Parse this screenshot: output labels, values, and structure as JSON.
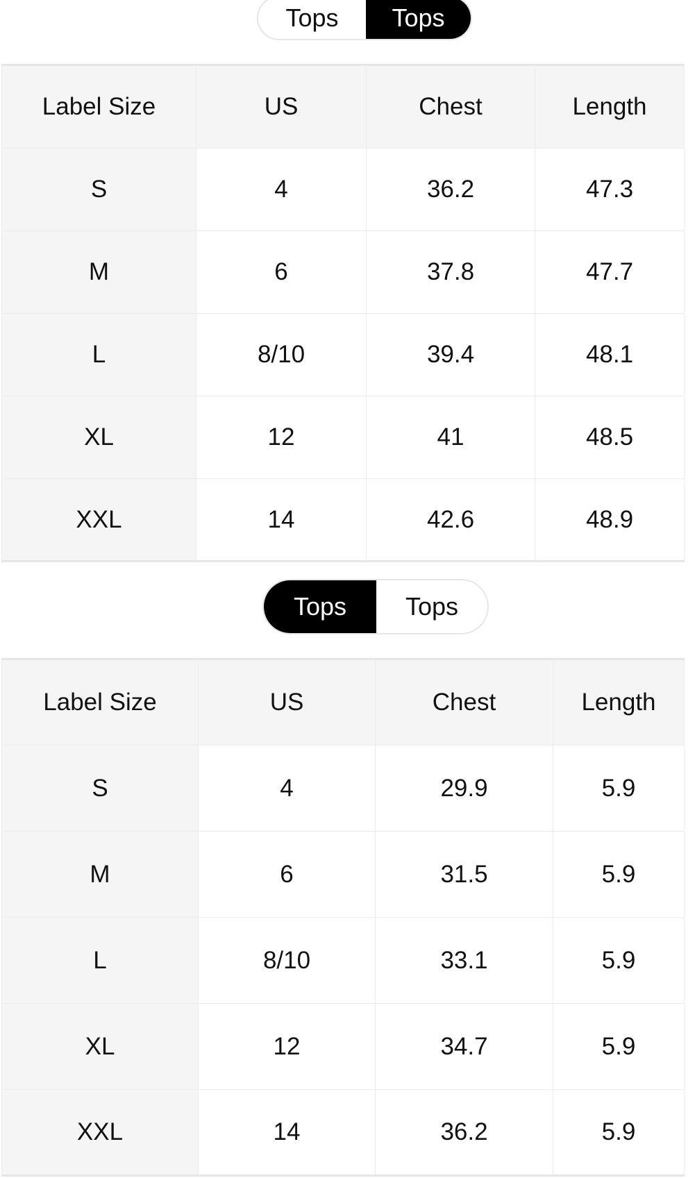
{
  "tables": [
    {
      "toggle": [
        {
          "label": "Tops",
          "active": false
        },
        {
          "label": "Tops",
          "active": true
        }
      ],
      "headers": [
        "Label Size",
        "US",
        "Chest",
        "Length"
      ],
      "rows": [
        [
          "S",
          "4",
          "36.2",
          "47.3"
        ],
        [
          "M",
          "6",
          "37.8",
          "47.7"
        ],
        [
          "L",
          "8/10",
          "39.4",
          "48.1"
        ],
        [
          "XL",
          "12",
          "41",
          "48.5"
        ],
        [
          "XXL",
          "14",
          "42.6",
          "48.9"
        ]
      ]
    },
    {
      "toggle": [
        {
          "label": "Tops",
          "active": true
        },
        {
          "label": "Tops",
          "active": false
        }
      ],
      "headers": [
        "Label Size",
        "US",
        "Chest",
        "Length"
      ],
      "rows": [
        [
          "S",
          "4",
          "29.9",
          "5.9"
        ],
        [
          "M",
          "6",
          "31.5",
          "5.9"
        ],
        [
          "L",
          "8/10",
          "33.1",
          "5.9"
        ],
        [
          "XL",
          "12",
          "34.7",
          "5.9"
        ],
        [
          "XXL",
          "14",
          "36.2",
          "5.9"
        ]
      ]
    }
  ]
}
